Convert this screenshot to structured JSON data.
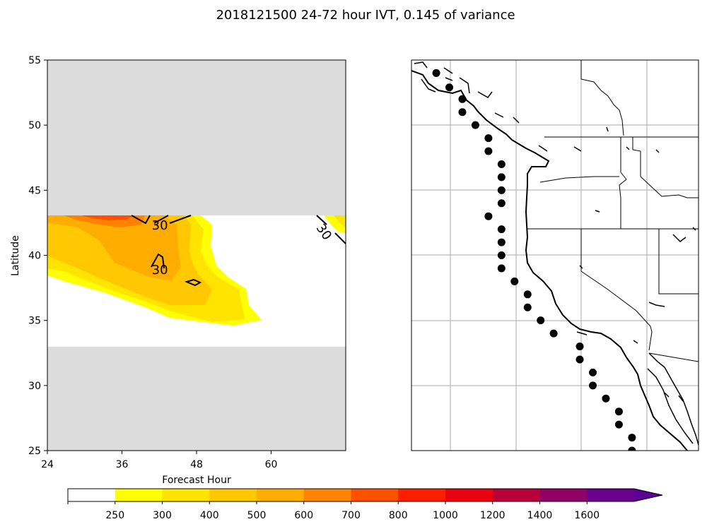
{
  "figure": {
    "title": "2018121500 24-72 hour IVT, 0.145 of variance"
  },
  "chart_data": [
    {
      "type": "heatmap",
      "panel": "left",
      "xlabel": "Forecast Hour",
      "ylabel": "Latitude",
      "xlim": [
        24,
        72
      ],
      "ylim": [
        25,
        55
      ],
      "xticks": [
        24,
        36,
        48,
        60
      ],
      "yticks": [
        25,
        30,
        35,
        40,
        45,
        50,
        55
      ],
      "data_coverage_lat": [
        33,
        43
      ],
      "contour_labels": [
        {
          "text": "30",
          "x": 42.1,
          "y": 42.3
        },
        {
          "text": "30",
          "x": 42.1,
          "y": 38.9
        },
        {
          "text": "30",
          "x": 68.5,
          "y": 41.8,
          "rotation": 55
        }
      ],
      "colors": {
        "no_data": "#dcdcdc",
        "contour_line": "#000000"
      }
    },
    {
      "type": "map",
      "panel": "right",
      "region": "US West Coast",
      "lon_range": [
        -130,
        -108
      ],
      "lat_range": [
        25,
        55
      ],
      "gridlines": true,
      "station_points": [
        [
          -128.1,
          54.0
        ],
        [
          -127.1,
          52.9
        ],
        [
          -126.1,
          52.0
        ],
        [
          -126.1,
          51.0
        ],
        [
          -125.1,
          50.0
        ],
        [
          -124.1,
          49.0
        ],
        [
          -124.1,
          48.0
        ],
        [
          -123.1,
          47.0
        ],
        [
          -123.1,
          46.0
        ],
        [
          -123.1,
          45.0
        ],
        [
          -123.1,
          44.0
        ],
        [
          -124.1,
          43.0
        ],
        [
          -123.1,
          42.0
        ],
        [
          -123.1,
          41.0
        ],
        [
          -123.1,
          40.0
        ],
        [
          -123.1,
          39.0
        ],
        [
          -122.1,
          38.0
        ],
        [
          -121.1,
          37.0
        ],
        [
          -121.1,
          36.0
        ],
        [
          -120.1,
          35.0
        ],
        [
          -119.1,
          34.0
        ],
        [
          -117.1,
          33.0
        ],
        [
          -117.1,
          32.0
        ],
        [
          -116.1,
          31.0
        ],
        [
          -116.1,
          30.0
        ],
        [
          -115.1,
          29.0
        ],
        [
          -114.1,
          28.0
        ],
        [
          -114.1,
          27.0
        ],
        [
          -113.1,
          26.0
        ],
        [
          -113.1,
          25.0
        ]
      ]
    },
    {
      "type": "colorbar",
      "orientation": "horizontal",
      "levels": [
        250,
        300,
        400,
        500,
        600,
        700,
        800,
        1000,
        1200,
        1400,
        1600
      ],
      "tick_labels": [
        "250",
        "300",
        "400",
        "500",
        "600",
        "700",
        "800",
        "1000",
        "1200",
        "1400",
        "1600"
      ],
      "colors": [
        "#ffffff",
        "#ffff00",
        "#ffe400",
        "#ffc800",
        "#ffad00",
        "#ff8200",
        "#ff5000",
        "#ff1e00",
        "#eb0010",
        "#b8003a",
        "#900064",
        "#68008c",
        "#5b0095"
      ],
      "extend": "max"
    }
  ]
}
